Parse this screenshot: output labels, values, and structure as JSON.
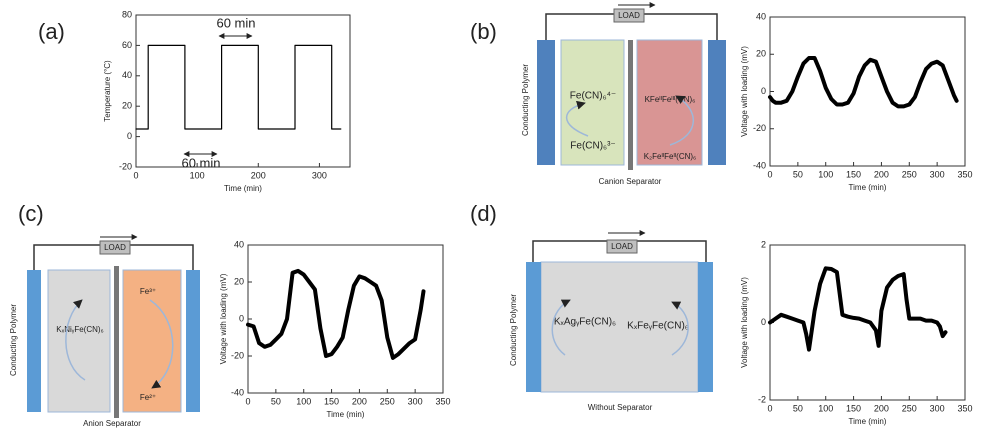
{
  "panel_labels": [
    "(a)",
    "(b)",
    "(c)",
    "(d)"
  ],
  "diagrams": [
    {
      "load": "LOAD",
      "electrode": "Conducting Polymer",
      "left_top": "Fe(CN)₆⁴⁻",
      "left_bottom": "Fe(CN)₆³⁻",
      "right_top": "KFeᴵᴵFeᴵᴵᴵ(CN)₆",
      "right_bottom": "K₂FeᴵᴵFeᴵᴵ(CN)₆",
      "separator": "Canion Separator"
    },
    {
      "load": "LOAD",
      "electrode": "Conducting Polymer",
      "left": "KₓNiᵧFe(CN)₆",
      "right_top": "Fe³⁺",
      "right_bottom": "Fe²⁺",
      "separator": "Anion Separator"
    },
    {
      "load": "LOAD",
      "electrode": "Conducting Polymer",
      "left": "KₓAgᵧFe(CN)₆",
      "right": "KₓFeᵧFe(CN)₆",
      "separator": "Without Separator"
    }
  ],
  "chart_data": [
    {
      "type": "line",
      "x_label": "Time (min)",
      "y_label": "Temperature (°C)",
      "x": [
        0,
        20,
        20,
        80,
        80,
        140,
        140,
        200,
        200,
        260,
        260,
        320,
        320,
        335
      ],
      "series": [
        {
          "color": "#000000",
          "values": [
            5,
            5,
            60,
            60,
            5,
            5,
            60,
            60,
            5,
            5,
            60,
            60,
            5,
            5
          ]
        }
      ],
      "xlim": [
        0,
        350
      ],
      "xticks": [
        0,
        100,
        200,
        300
      ],
      "ylim": [
        -20,
        80
      ],
      "yticks": [
        -20,
        0,
        20,
        40,
        60,
        80
      ],
      "annotations": [
        "60 min",
        "60 min"
      ]
    },
    {
      "type": "line",
      "x_label": "Time (min)",
      "y_label": "Voltage with loading (mV)",
      "x": [
        0,
        5,
        10,
        20,
        30,
        40,
        50,
        60,
        70,
        80,
        90,
        100,
        110,
        120,
        130,
        140,
        150,
        160,
        170,
        180,
        190,
        200,
        210,
        220,
        230,
        240,
        250,
        260,
        270,
        280,
        290,
        300,
        310,
        320,
        330,
        335
      ],
      "series": [
        {
          "color": "#000000",
          "values": [
            -3,
            -5,
            -6,
            -6,
            -5,
            0,
            8,
            15,
            18,
            18,
            11,
            2,
            -4,
            -7,
            -7,
            -6,
            -1,
            8,
            14,
            17,
            16,
            8,
            0,
            -6,
            -8,
            -8,
            -7,
            -3,
            5,
            12,
            15,
            16,
            14,
            6,
            -2,
            -5
          ]
        }
      ],
      "xlim": [
        0,
        350
      ],
      "xticks": [
        0,
        50,
        100,
        150,
        200,
        250,
        300,
        350
      ],
      "ylim": [
        -40,
        40
      ],
      "yticks": [
        -40,
        -20,
        0,
        20,
        40
      ]
    },
    {
      "type": "line",
      "x_label": "Time (min)",
      "y_label": "Voltage with loading (mV)",
      "x": [
        0,
        10,
        20,
        30,
        40,
        50,
        60,
        70,
        80,
        90,
        100,
        110,
        120,
        130,
        140,
        150,
        160,
        170,
        180,
        190,
        200,
        210,
        220,
        230,
        240,
        250,
        260,
        270,
        280,
        290,
        300,
        310,
        315
      ],
      "series": [
        {
          "color": "#000000",
          "values": [
            -3,
            -4,
            -13,
            -15,
            -14,
            -11,
            -8,
            0,
            25,
            26,
            24,
            20,
            16,
            -5,
            -20,
            -19,
            -15,
            -10,
            5,
            18,
            23,
            22,
            20,
            18,
            10,
            -10,
            -21,
            -19,
            -16,
            -13,
            -11,
            5,
            15
          ]
        }
      ],
      "xlim": [
        0,
        350
      ],
      "xticks": [
        0,
        50,
        100,
        150,
        200,
        250,
        300,
        350
      ],
      "ylim": [
        -40,
        40
      ],
      "yticks": [
        -40,
        -20,
        0,
        20,
        40
      ]
    },
    {
      "type": "line",
      "x_label": "Time (min)",
      "y_label": "Voltage with loading (mV)",
      "x": [
        0,
        10,
        20,
        30,
        40,
        50,
        60,
        65,
        70,
        80,
        90,
        100,
        110,
        120,
        130,
        140,
        150,
        160,
        170,
        180,
        190,
        195,
        200,
        210,
        220,
        230,
        240,
        245,
        250,
        260,
        270,
        280,
        290,
        300,
        305,
        310,
        315
      ],
      "series": [
        {
          "color": "#000000",
          "values": [
            0,
            0.1,
            0.2,
            0.15,
            0.1,
            0.05,
            0,
            -0.3,
            -0.7,
            0.3,
            1.0,
            1.4,
            1.38,
            1.3,
            0.2,
            0.15,
            0.12,
            0.1,
            0.05,
            0,
            -0.2,
            -0.6,
            0.3,
            0.9,
            1.1,
            1.2,
            1.25,
            0.6,
            0.1,
            0.1,
            0.1,
            0.05,
            0.05,
            0,
            -0.1,
            -0.35,
            -0.25
          ]
        }
      ],
      "xlim": [
        0,
        350
      ],
      "xticks": [
        0,
        50,
        100,
        150,
        200,
        250,
        300,
        350
      ],
      "ylim": [
        -2,
        2
      ],
      "yticks": [
        -2,
        0,
        2
      ]
    }
  ]
}
